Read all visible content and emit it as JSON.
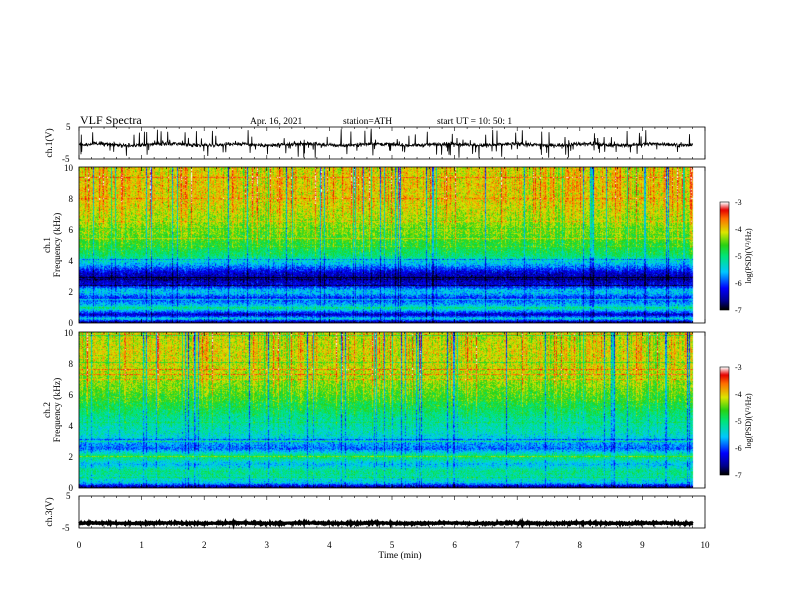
{
  "header": {
    "title": "VLF  Spectra",
    "date": "Apr. 16, 2021",
    "station": "station=ATH",
    "start": "start  UT  =    10: 50: 1"
  },
  "chart_data": [
    {
      "type": "line",
      "ylabel": "ch.1(V)",
      "yticks": [
        "5",
        "-5"
      ],
      "ylim": [
        -5,
        5
      ],
      "xlim": [
        0,
        10
      ],
      "data_extent_min": 9.8,
      "baseline": -0.5,
      "noise_amplitude": 0.8,
      "spike_range": [
        -4.8,
        4.5
      ]
    },
    {
      "type": "heatmap",
      "ylabel": "ch.1\nFrequency  (kHz)",
      "yticks": [
        "10",
        "8",
        "6",
        "4",
        "2",
        "0"
      ],
      "ylim": [
        0,
        10
      ],
      "xlim": [
        0,
        10
      ],
      "data_extent_min": 9.8,
      "colorbar": {
        "label": "log(PSD)(V²/Hz)",
        "ticks": [
          "-3",
          "-4",
          "-5",
          "-6",
          "-7"
        ],
        "range": [
          -7,
          -3
        ]
      },
      "psd_profile": [
        {
          "f": 0.0,
          "v": -6.8
        },
        {
          "f": 0.25,
          "v": -5.4
        },
        {
          "f": 0.5,
          "v": -6.5
        },
        {
          "f": 0.9,
          "v": -5.2
        },
        {
          "f": 1.2,
          "v": -5.7
        },
        {
          "f": 1.6,
          "v": -6.1
        },
        {
          "f": 2.0,
          "v": -5.4
        },
        {
          "f": 2.4,
          "v": -6.3
        },
        {
          "f": 2.8,
          "v": -6.6
        },
        {
          "f": 3.2,
          "v": -6.4
        },
        {
          "f": 3.7,
          "v": -5.7
        },
        {
          "f": 4.3,
          "v": -5.0
        },
        {
          "f": 5.0,
          "v": -4.7
        },
        {
          "f": 6.0,
          "v": -4.4
        },
        {
          "f": 7.0,
          "v": -4.2
        },
        {
          "f": 8.0,
          "v": -4.0
        },
        {
          "f": 9.0,
          "v": -4.0
        },
        {
          "f": 10.0,
          "v": -4.1
        }
      ]
    },
    {
      "type": "heatmap",
      "ylabel": "ch.2\nFrequency  (kHz)",
      "yticks": [
        "10",
        "8",
        "6",
        "4",
        "2",
        "0"
      ],
      "ylim": [
        0,
        10
      ],
      "xlim": [
        0,
        10
      ],
      "data_extent_min": 9.8,
      "colorbar": {
        "label": "log(PSD)(V²/Hz)",
        "ticks": [
          "-3",
          "-4",
          "-5",
          "-6",
          "-7"
        ],
        "range": [
          -7,
          -3
        ]
      },
      "psd_profile": [
        {
          "f": 0.0,
          "v": -6.8
        },
        {
          "f": 0.3,
          "v": -5.5
        },
        {
          "f": 0.6,
          "v": -5.3
        },
        {
          "f": 1.0,
          "v": -5.0
        },
        {
          "f": 1.5,
          "v": -5.6
        },
        {
          "f": 2.0,
          "v": -4.9
        },
        {
          "f": 2.5,
          "v": -5.9
        },
        {
          "f": 3.0,
          "v": -5.6
        },
        {
          "f": 3.5,
          "v": -5.3
        },
        {
          "f": 4.5,
          "v": -5.1
        },
        {
          "f": 5.5,
          "v": -4.7
        },
        {
          "f": 6.5,
          "v": -4.4
        },
        {
          "f": 7.5,
          "v": -4.2
        },
        {
          "f": 8.5,
          "v": -4.1
        },
        {
          "f": 10.0,
          "v": -4.2
        }
      ]
    },
    {
      "type": "line",
      "ylabel": "ch.3(V)",
      "yticks": [
        "5",
        "-5"
      ],
      "ylim": [
        -5,
        5
      ],
      "xlim": [
        0,
        10
      ],
      "data_extent_min": 9.8,
      "baseline": -3.5,
      "noise_amplitude": 0.25,
      "xlabel": "Time  (min)",
      "xticks": [
        "0",
        "1",
        "2",
        "3",
        "4",
        "5",
        "6",
        "7",
        "8",
        "9",
        "10"
      ]
    }
  ]
}
